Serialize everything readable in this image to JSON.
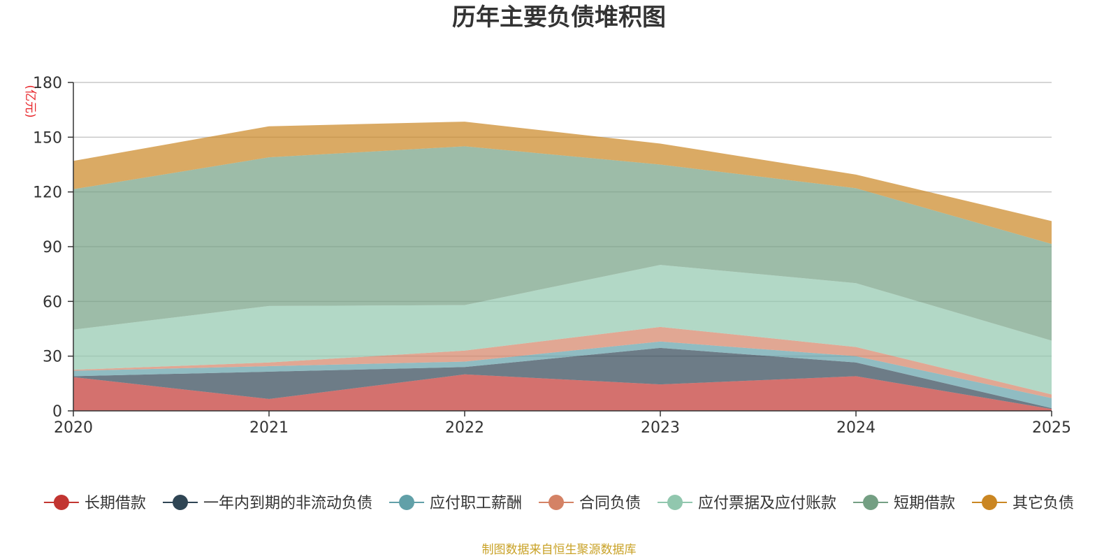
{
  "chart_data": {
    "type": "area",
    "stacked": true,
    "title": "历年主要负债堆积图",
    "unit_label": "(亿元)",
    "categories": [
      "2020",
      "2021",
      "2022",
      "2023",
      "2024",
      "2025"
    ],
    "ylim": [
      0,
      180
    ],
    "yticks": [
      0,
      30,
      60,
      90,
      120,
      150,
      180
    ],
    "grid": true,
    "legend_position": "bottom",
    "series": [
      {
        "name": "长期借款",
        "color": "#c23531",
        "values": [
          18.5,
          6.5,
          20,
          14.5,
          19,
          1
        ]
      },
      {
        "name": "一年内到期的非流动负债",
        "color": "#2f4554",
        "values": [
          0.5,
          15,
          4,
          20,
          7.5,
          0.5
        ]
      },
      {
        "name": "应付职工薪酬",
        "color": "#61a0a8",
        "values": [
          3,
          3,
          3,
          3.5,
          3.5,
          5.5
        ]
      },
      {
        "name": "合同负债",
        "color": "#d48265",
        "values": [
          0.5,
          2,
          6,
          8,
          5,
          2
        ]
      },
      {
        "name": "应付票据及应付账款",
        "color": "#91c7ae",
        "values": [
          22,
          31,
          25,
          34,
          35,
          29.5
        ]
      },
      {
        "name": "短期借款",
        "color": "#749f83",
        "values": [
          77,
          81.5,
          87,
          55,
          52,
          53
        ]
      },
      {
        "name": "其它负债",
        "color": "#ca8622",
        "values": [
          15.5,
          17,
          13.5,
          11.5,
          7.5,
          12.5
        ]
      }
    ]
  },
  "footer": {
    "source": "制图数据来自恒生聚源数据库"
  }
}
